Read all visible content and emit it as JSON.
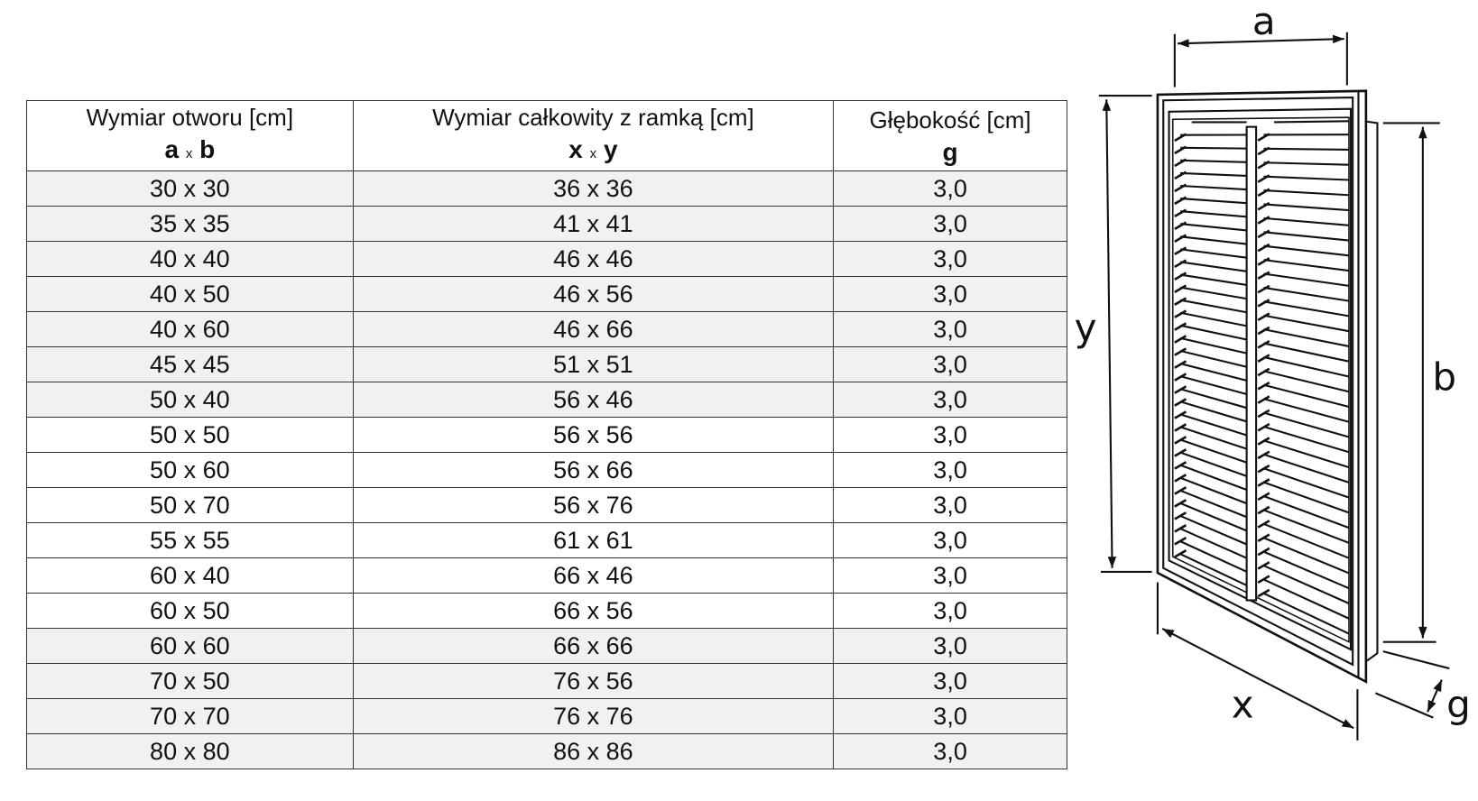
{
  "table": {
    "headers": [
      {
        "title": "Wymiar otworu [cm]",
        "sym1": "a",
        "sep": "x",
        "sym2": "b"
      },
      {
        "title": "Wymiar całkowity z ramką [cm]",
        "sym1": "x",
        "sep": "x",
        "sym2": "y"
      },
      {
        "title": "Głębokość [cm]",
        "sym1": "g",
        "sep": "",
        "sym2": ""
      }
    ],
    "rows": [
      [
        "30 x 30",
        "36 x 36",
        "3,0"
      ],
      [
        "35 x 35",
        "41 x 41",
        "3,0"
      ],
      [
        "40 x 40",
        "46 x 46",
        "3,0"
      ],
      [
        "40 x 50",
        "46 x 56",
        "3,0"
      ],
      [
        "40 x 60",
        "46 x 66",
        "3,0"
      ],
      [
        "45 x 45",
        "51 x 51",
        "3,0"
      ],
      [
        "50 x 40",
        "56 x 46",
        "3,0"
      ],
      [
        "50 x 50",
        "56 x 56",
        "3,0"
      ],
      [
        "50 x 60",
        "56 x 66",
        "3,0"
      ],
      [
        "50 x 70",
        "56 x 76",
        "3,0"
      ],
      [
        "55 x 55",
        "61 x 61",
        "3,0"
      ],
      [
        "60 x 40",
        "66 x 46",
        "3,0"
      ],
      [
        "60 x 50",
        "66 x 56",
        "3,0"
      ],
      [
        "60 x 60",
        "66 x 66",
        "3,0"
      ],
      [
        "70 x 50",
        "76 x 56",
        "3,0"
      ],
      [
        "70 x 70",
        "76 x 76",
        "3,0"
      ],
      [
        "80 x 80",
        "86 x 86",
        "3,0"
      ]
    ]
  },
  "diagram": {
    "labels": {
      "a": "a",
      "b": "b",
      "x": "x",
      "y": "y",
      "g": "g"
    }
  }
}
